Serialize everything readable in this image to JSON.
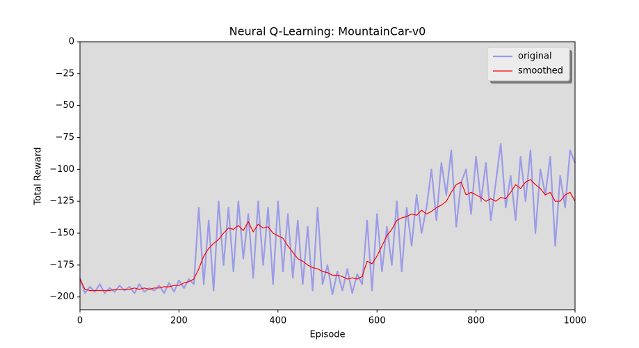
{
  "chart_data": {
    "type": "line",
    "title": "Neural Q-Learning: MountainCar-v0",
    "x_label": "Episode",
    "y_label": "Total Reward",
    "x": [
      0,
      10,
      20,
      30,
      40,
      50,
      60,
      70,
      80,
      90,
      100,
      110,
      120,
      130,
      140,
      150,
      160,
      170,
      180,
      190,
      200,
      210,
      220,
      230,
      240,
      250,
      260,
      270,
      280,
      290,
      300,
      310,
      320,
      330,
      340,
      350,
      360,
      370,
      380,
      390,
      400,
      410,
      420,
      430,
      440,
      450,
      460,
      470,
      480,
      490,
      500,
      510,
      520,
      530,
      540,
      550,
      560,
      570,
      580,
      590,
      600,
      610,
      620,
      630,
      640,
      650,
      660,
      670,
      680,
      690,
      700,
      710,
      720,
      730,
      740,
      750,
      760,
      770,
      780,
      790,
      800,
      810,
      820,
      830,
      840,
      850,
      860,
      870,
      880,
      890,
      900,
      910,
      920,
      930,
      940,
      950,
      960,
      970,
      980,
      990,
      1000
    ],
    "series": [
      {
        "name": "original",
        "color": "#9b9be8",
        "width": 2.2,
        "values": [
          -185,
          -197,
          -192,
          -196,
          -190,
          -197,
          -193,
          -196,
          -191,
          -195,
          -192,
          -197,
          -190,
          -196,
          -193,
          -195,
          -191,
          -197,
          -189,
          -196,
          -187,
          -193,
          -186,
          -190,
          -130,
          -190,
          -140,
          -195,
          -125,
          -175,
          -130,
          -180,
          -125,
          -170,
          -135,
          -185,
          -125,
          -175,
          -130,
          -190,
          -125,
          -180,
          -135,
          -185,
          -140,
          -190,
          -145,
          -195,
          -130,
          -190,
          -175,
          -198,
          -180,
          -195,
          -178,
          -197,
          -182,
          -190,
          -140,
          -195,
          -135,
          -180,
          -145,
          -175,
          -125,
          -180,
          -130,
          -160,
          -120,
          -150,
          -130,
          -100,
          -140,
          -95,
          -120,
          -85,
          -145,
          -110,
          -100,
          -135,
          -90,
          -125,
          -95,
          -140,
          -110,
          -80,
          -130,
          -105,
          -140,
          -90,
          -125,
          -85,
          -150,
          -100,
          -120,
          -90,
          -160,
          -105,
          -130,
          -85,
          -95
        ]
      },
      {
        "name": "smoothed",
        "color": "#ff0000",
        "width": 1.2,
        "values": [
          -186,
          -194,
          -195,
          -195,
          -195,
          -195,
          -195,
          -194,
          -194,
          -194,
          -194,
          -193,
          -194,
          -193,
          -194,
          -193,
          -193,
          -192,
          -192,
          -191,
          -191,
          -189,
          -188,
          -186,
          -178,
          -168,
          -162,
          -158,
          -155,
          -150,
          -146,
          -147,
          -144,
          -148,
          -141,
          -149,
          -143,
          -146,
          -145,
          -150,
          -152,
          -154,
          -160,
          -165,
          -170,
          -172,
          -175,
          -177,
          -178,
          -180,
          -181,
          -183,
          -183,
          -184,
          -186,
          -185,
          -186,
          -184,
          -172,
          -174,
          -168,
          -160,
          -152,
          -147,
          -140,
          -138,
          -137,
          -135,
          -136,
          -132,
          -135,
          -133,
          -130,
          -128,
          -125,
          -118,
          -112,
          -110,
          -120,
          -118,
          -120,
          -122,
          -125,
          -123,
          -125,
          -122,
          -123,
          -118,
          -112,
          -115,
          -110,
          -108,
          -112,
          -115,
          -120,
          -118,
          -125,
          -125,
          -120,
          -118,
          -125
        ]
      }
    ],
    "xlim": [
      0,
      1000
    ],
    "xticks": [
      0,
      200,
      400,
      600,
      800,
      1000
    ],
    "ylim": [
      -210,
      0
    ],
    "yticks": [
      {
        "value": -200,
        "label": "−200"
      },
      {
        "value": -175,
        "label": "−175"
      },
      {
        "value": -150,
        "label": "−150"
      },
      {
        "value": -125,
        "label": "−125"
      },
      {
        "value": -100,
        "label": "−100"
      },
      {
        "value": -75,
        "label": "−75"
      },
      {
        "value": -50,
        "label": "−50"
      },
      {
        "value": -25,
        "label": "−25"
      },
      0
    ],
    "legend": "upper right",
    "background": "#dcdcdc"
  }
}
